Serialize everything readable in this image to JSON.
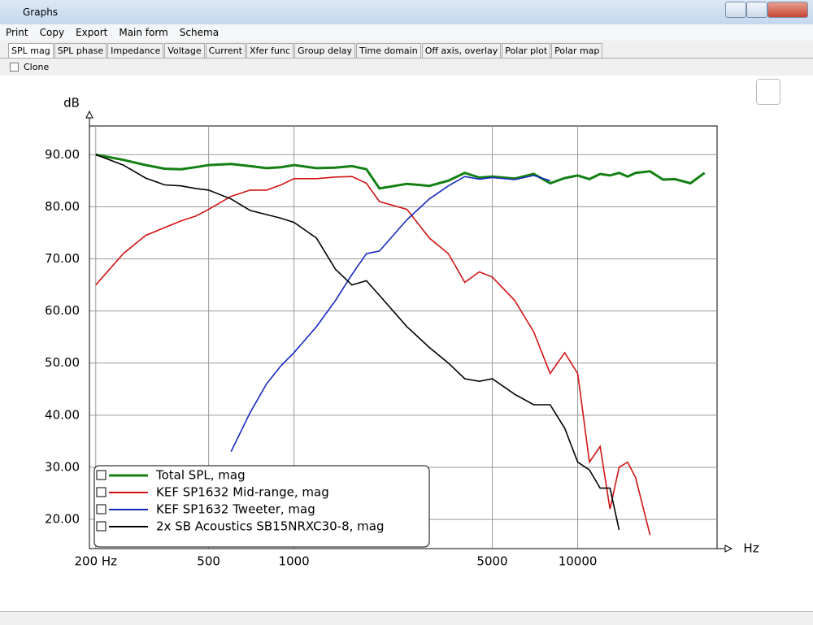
{
  "window": {
    "title": "Graphs"
  },
  "menu": [
    "Print",
    "Copy",
    "Export",
    "Main form",
    "Schema"
  ],
  "tabs": [
    "SPL mag",
    "SPL phase",
    "Impedance",
    "Voltage",
    "Current",
    "Xfer func",
    "Group delay",
    "Time domain",
    "Off axis, overlay",
    "Polar plot",
    "Polar map"
  ],
  "clone_label": "Clone",
  "chart_data": {
    "type": "line",
    "y_label": "dB",
    "x_label": "Hz",
    "x_log": true,
    "grid": true,
    "legend": "lower left",
    "xlim": [
      190,
      31000
    ],
    "xticks": [
      {
        "value": 200,
        "label": "200 Hz"
      },
      500,
      1000,
      5000,
      10000
    ],
    "ylim": [
      14.4,
      95.5
    ],
    "yticks": [
      {
        "value": 20,
        "label": "20.00"
      },
      {
        "value": 30,
        "label": "30.00"
      },
      {
        "value": 40,
        "label": "40.00"
      },
      {
        "value": 50,
        "label": "50.00"
      },
      {
        "value": 60,
        "label": "60.00"
      },
      {
        "value": 70,
        "label": "70.00"
      },
      {
        "value": 80,
        "label": "80.00"
      },
      {
        "value": 90,
        "label": "90.00"
      }
    ],
    "x": [
      200,
      250,
      300,
      350,
      400,
      450,
      500,
      600,
      700,
      800,
      900,
      1000,
      1200,
      1400,
      1600,
      1800,
      2000,
      2500,
      3000,
      3500,
      4000,
      4500,
      5000,
      6000,
      7000,
      8000,
      9000,
      10000,
      11000,
      12000,
      13000,
      14000,
      15000,
      16000,
      18000,
      20000,
      22000,
      25000,
      28000
    ],
    "series": [
      {
        "name": "Total SPL, mag",
        "color": "#148014",
        "values": [
          90,
          89,
          88,
          87.3,
          87.2,
          87.6,
          88,
          88.2,
          87.8,
          87.4,
          87.6,
          88,
          87.4,
          87.5,
          87.8,
          87.2,
          83.5,
          84.4,
          84,
          85,
          86.5,
          85.6,
          85.8,
          85.4,
          86.3,
          84.5,
          85.5,
          86,
          85.3,
          86.3,
          86,
          86.5,
          85.8,
          86.5,
          86.8,
          85.2,
          85.3,
          84.5,
          86.5
        ]
      },
      {
        "name": "KEF SP1632 Mid-range, mag",
        "color": "#d01414",
        "values": [
          65,
          71,
          74.5,
          76,
          77.3,
          78.2,
          79.5,
          82,
          83.2,
          83.2,
          84.2,
          85.4,
          85.4,
          85.7,
          85.8,
          84.5,
          81,
          79.5,
          74,
          71,
          65.5,
          67.5,
          66.5,
          62,
          56,
          48,
          52,
          48,
          31,
          34,
          22,
          30,
          31,
          28,
          17,
          null,
          null,
          null,
          null
        ]
      },
      {
        "name": "KEF SP1632 Tweeter, mag",
        "color": "#1428c0",
        "values": [
          null,
          null,
          null,
          null,
          null,
          null,
          null,
          33,
          40.5,
          46,
          49.5,
          52,
          57,
          62,
          67,
          71,
          71.5,
          77.5,
          81.5,
          84,
          85.8,
          85.3,
          85.6,
          85.2,
          86,
          85,
          null,
          null,
          null,
          null,
          null,
          null,
          null,
          null,
          null,
          null,
          null,
          null,
          null
        ]
      },
      {
        "name": "2x SB Acoustics SB15NRXC30-8, mag",
        "color": "#000000",
        "values": [
          90,
          88,
          85.5,
          84.2,
          84,
          83.5,
          83.2,
          81.5,
          79.3,
          78.5,
          77.8,
          77,
          74,
          68,
          65,
          65.8,
          63,
          57,
          53,
          50,
          47,
          46.5,
          47,
          44,
          42,
          42,
          37.5,
          31,
          29.5,
          26,
          26,
          18,
          null,
          null,
          null,
          null,
          null,
          null,
          null
        ]
      }
    ]
  }
}
